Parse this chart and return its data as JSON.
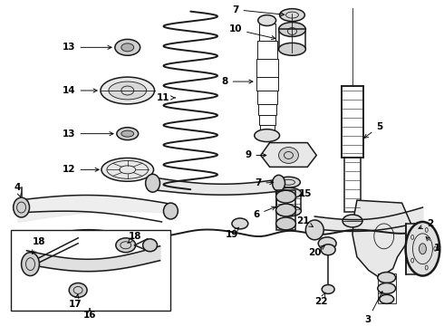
{
  "bg_color": "#ffffff",
  "line_color": "#1a1a1a",
  "fig_width": 4.9,
  "fig_height": 3.6,
  "dpi": 100,
  "label_fontsize": 7.5,
  "lw_main": 1.1,
  "lw_thick": 1.8,
  "lw_thin": 0.6
}
